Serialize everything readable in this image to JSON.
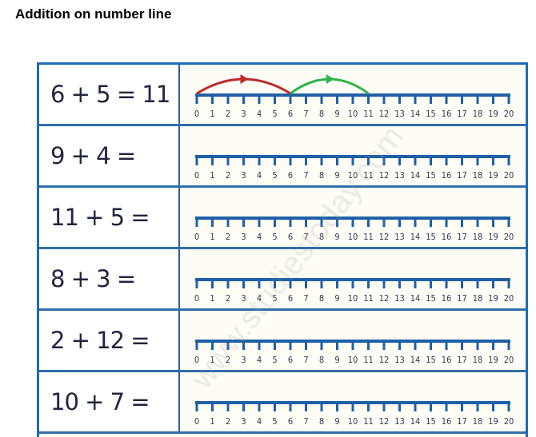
{
  "title": "Addition on number line",
  "watermark": "www.studiestoday.com",
  "number_line": {
    "min": 0,
    "max": 20,
    "color": "#1f5fa6"
  },
  "rows": [
    {
      "equation": "6 + 5 = 11",
      "jumps": [
        {
          "from": 0,
          "to": 6,
          "color": "#c0282a"
        },
        {
          "from": 6,
          "to": 11,
          "color": "#2db34a"
        }
      ]
    },
    {
      "equation": "9 + 4 =",
      "jumps": []
    },
    {
      "equation": "11 + 5 =",
      "jumps": []
    },
    {
      "equation": "8 + 3 =",
      "jumps": []
    },
    {
      "equation": "2 + 12 =",
      "jumps": []
    },
    {
      "equation": "10 + 7 =",
      "jumps": []
    }
  ]
}
